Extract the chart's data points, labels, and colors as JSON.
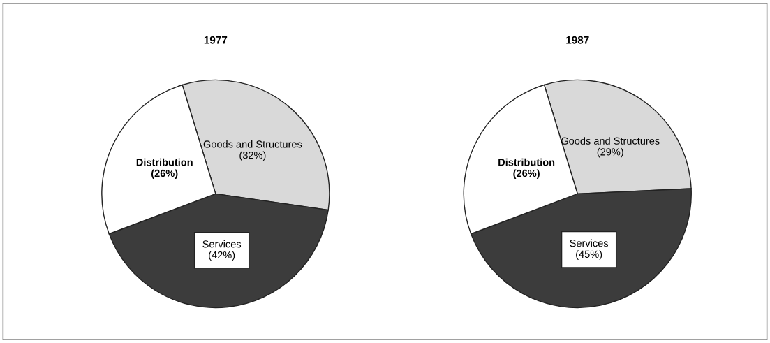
{
  "chart_data": [
    {
      "type": "pie",
      "title": "1977",
      "categories": [
        "Goods and Structures",
        "Services",
        "Distribution"
      ],
      "values": [
        32,
        42,
        26
      ],
      "value_labels": [
        "(32%)",
        "(42%)",
        "(26%)"
      ],
      "colors": [
        "#d9d9d9",
        "#3c3c3c",
        "#ffffff"
      ]
    },
    {
      "type": "pie",
      "title": "1987",
      "categories": [
        "Goods and Structures",
        "Services",
        "Distribution"
      ],
      "values": [
        29,
        45,
        26
      ],
      "value_labels": [
        "(29%)",
        "(45%)",
        "(26%)"
      ],
      "colors": [
        "#d9d9d9",
        "#3c3c3c",
        "#ffffff"
      ]
    }
  ]
}
